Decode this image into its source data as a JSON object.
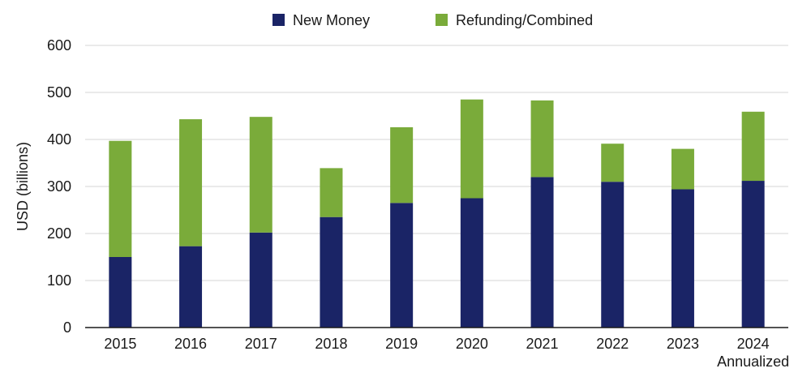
{
  "chart_data": {
    "type": "bar",
    "stacked": true,
    "categories": [
      "2015",
      "2016",
      "2017",
      "2018",
      "2019",
      "2020",
      "2021",
      "2022",
      "2023",
      "2024\nAnnualized"
    ],
    "series": [
      {
        "name": "New Money",
        "color": "#1a2466",
        "values": [
          150,
          173,
          202,
          235,
          265,
          275,
          320,
          310,
          294,
          312
        ]
      },
      {
        "name": "Refunding/Combined",
        "color": "#7aab3a",
        "values": [
          247,
          270,
          246,
          104,
          161,
          210,
          163,
          81,
          86,
          147
        ]
      }
    ],
    "ylabel": "USD (billions)",
    "ylim": [
      0,
      600
    ],
    "yticks": [
      0,
      100,
      200,
      300,
      400,
      500,
      600
    ],
    "grid": true,
    "legend": "top-center"
  }
}
